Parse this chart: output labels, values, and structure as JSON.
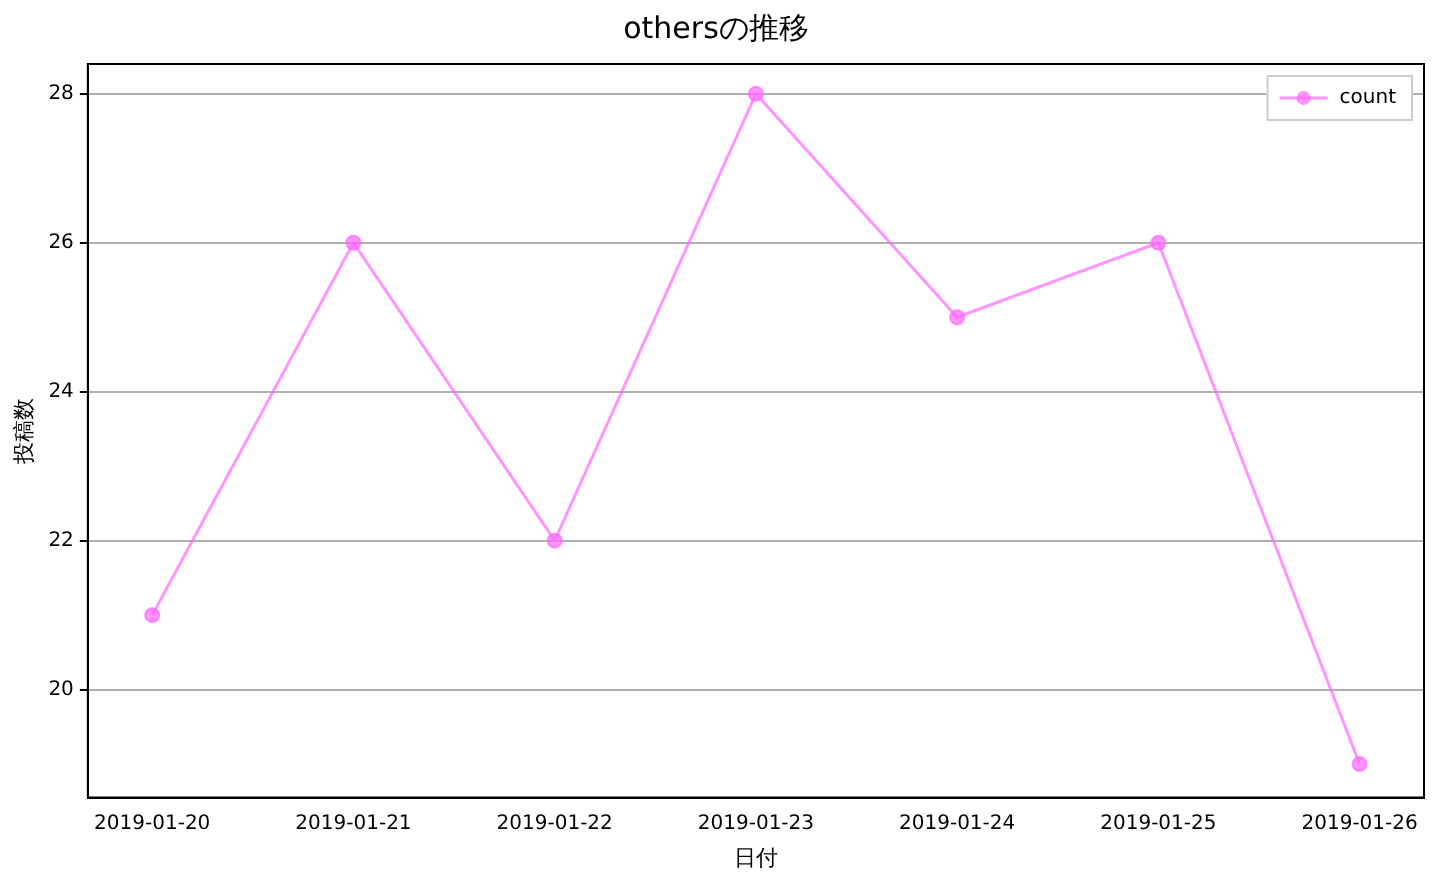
{
  "chart_data": {
    "type": "line",
    "title": "othersの推移",
    "xlabel": "日付",
    "ylabel": "投稿数",
    "categories": [
      "2019-01-20",
      "2019-01-21",
      "2019-01-22",
      "2019-01-23",
      "2019-01-24",
      "2019-01-25",
      "2019-01-26"
    ],
    "series": [
      {
        "name": "count",
        "color": "#ff66ff",
        "values": [
          21,
          26,
          22,
          28,
          25,
          26,
          19
        ]
      }
    ],
    "ylim": [
      18.55,
      28.4
    ],
    "yticks": [
      20,
      22,
      24,
      26,
      28
    ],
    "grid": "y",
    "legend": "top right",
    "marker": "circle",
    "line_style": "solid"
  }
}
